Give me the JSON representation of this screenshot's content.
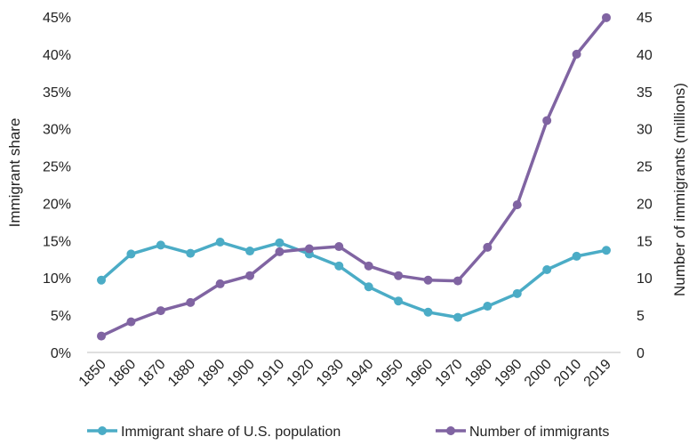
{
  "chart_data": {
    "type": "line",
    "x_categories": [
      "1850",
      "1860",
      "1870",
      "1880",
      "1890",
      "1900",
      "1910",
      "1920",
      "1930",
      "1940",
      "1950",
      "1960",
      "1970",
      "1980",
      "1990",
      "2000",
      "2010",
      "2019"
    ],
    "y_left": {
      "label": "Immigrant share",
      "ylim": [
        0,
        45
      ],
      "ticks": [
        "0%",
        "5%",
        "10%",
        "15%",
        "20%",
        "25%",
        "30%",
        "35%",
        "40%",
        "45%"
      ]
    },
    "y_right": {
      "label": "Number of immigrants (millions)",
      "ylim": [
        0,
        45
      ],
      "ticks": [
        "0",
        "5",
        "10",
        "15",
        "20",
        "25",
        "30",
        "35",
        "40",
        "45"
      ]
    },
    "series": [
      {
        "name": "Immigrant share of U.S. population",
        "axis": "left",
        "color": "#4bacc6",
        "values": [
          9.7,
          13.2,
          14.4,
          13.3,
          14.8,
          13.6,
          14.7,
          13.2,
          11.6,
          8.8,
          6.9,
          5.4,
          4.7,
          6.2,
          7.9,
          11.1,
          12.9,
          13.7
        ]
      },
      {
        "name": "Number of immigrants",
        "axis": "right",
        "color": "#8064a2",
        "values": [
          2.2,
          4.1,
          5.6,
          6.7,
          9.2,
          10.3,
          13.5,
          13.9,
          14.2,
          11.6,
          10.3,
          9.7,
          9.6,
          14.1,
          19.8,
          31.1,
          40.0,
          44.9
        ]
      }
    ],
    "grid": false,
    "legend_position": "bottom"
  }
}
